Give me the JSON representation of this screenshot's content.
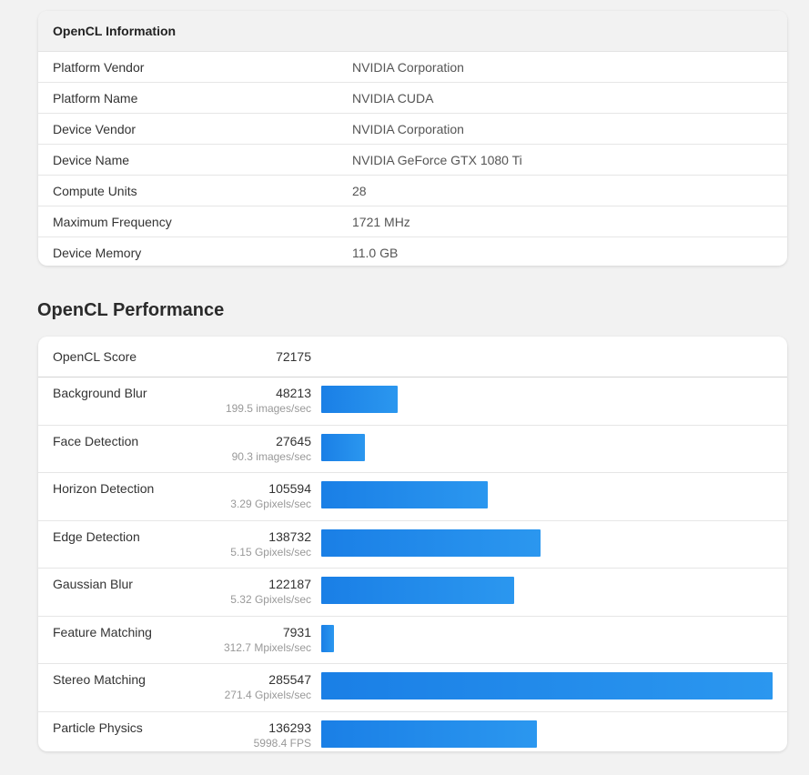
{
  "info": {
    "title": "OpenCL Information",
    "rows": [
      {
        "label": "Platform Vendor",
        "value": "NVIDIA Corporation"
      },
      {
        "label": "Platform Name",
        "value": "NVIDIA CUDA"
      },
      {
        "label": "Device Vendor",
        "value": "NVIDIA Corporation"
      },
      {
        "label": "Device Name",
        "value": "NVIDIA GeForce GTX 1080 Ti"
      },
      {
        "label": "Compute Units",
        "value": "28"
      },
      {
        "label": "Maximum Frequency",
        "value": "1721 MHz"
      },
      {
        "label": "Device Memory",
        "value": "11.0 GB"
      }
    ]
  },
  "performance": {
    "title": "OpenCL Performance",
    "score_label": "OpenCL Score",
    "score_value": "72175",
    "bar_color": "#1a7fe6",
    "benchmarks": [
      {
        "name": "Background Blur",
        "score": "48213",
        "rate": "199.5 images/sec",
        "score_num": 48213
      },
      {
        "name": "Face Detection",
        "score": "27645",
        "rate": "90.3 images/sec",
        "score_num": 27645
      },
      {
        "name": "Horizon Detection",
        "score": "105594",
        "rate": "3.29 Gpixels/sec",
        "score_num": 105594
      },
      {
        "name": "Edge Detection",
        "score": "138732",
        "rate": "5.15 Gpixels/sec",
        "score_num": 138732
      },
      {
        "name": "Gaussian Blur",
        "score": "122187",
        "rate": "5.32 Gpixels/sec",
        "score_num": 122187
      },
      {
        "name": "Feature Matching",
        "score": "7931",
        "rate": "312.7 Mpixels/sec",
        "score_num": 7931
      },
      {
        "name": "Stereo Matching",
        "score": "285547",
        "rate": "271.4 Gpixels/sec",
        "score_num": 285547
      },
      {
        "name": "Particle Physics",
        "score": "136293",
        "rate": "5998.4 FPS",
        "score_num": 136293
      }
    ]
  }
}
